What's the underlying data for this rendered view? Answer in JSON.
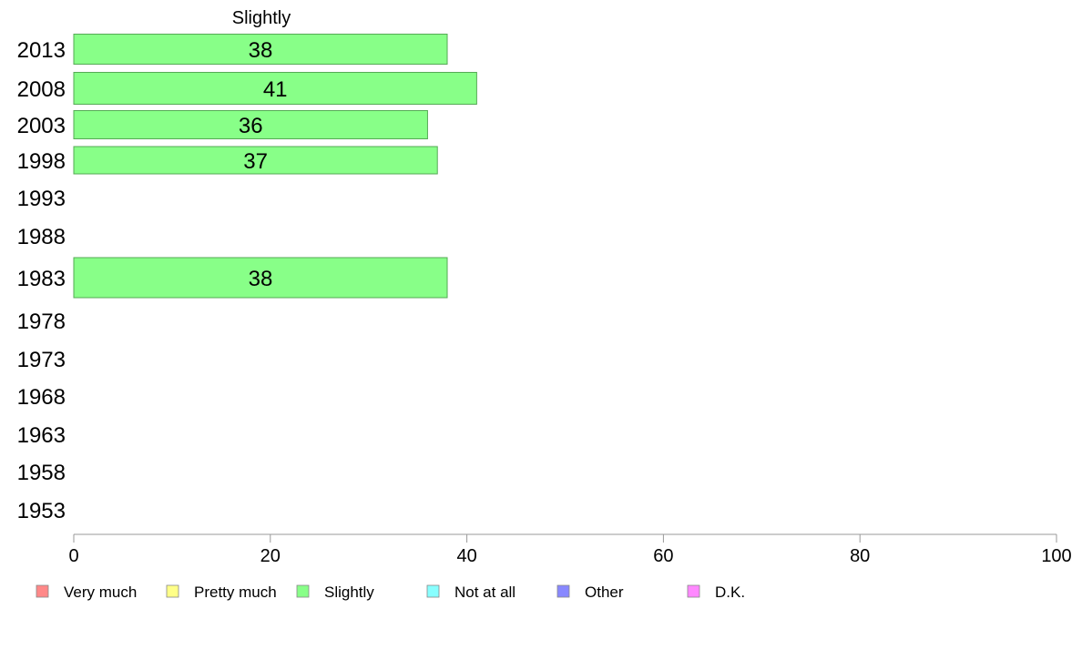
{
  "chart_data": {
    "type": "bar",
    "orientation": "horizontal",
    "title": "Slightly",
    "categories": [
      "2013",
      "2008",
      "2003",
      "1998",
      "1993",
      "1988",
      "1983",
      "1978",
      "1973",
      "1968",
      "1963",
      "1958",
      "1953"
    ],
    "values": [
      38,
      41,
      36,
      37,
      null,
      null,
      38,
      null,
      null,
      null,
      null,
      null,
      null
    ],
    "xlim": [
      0,
      100
    ],
    "xticks": [
      0,
      20,
      40,
      60,
      80,
      100
    ],
    "bar_color": "#88ff88",
    "bar_stroke": "#55aa55",
    "legend_position": "bottom",
    "legend": [
      {
        "label": "Very much",
        "color": "#ff8888"
      },
      {
        "label": "Pretty much",
        "color": "#ffff88"
      },
      {
        "label": "Slightly",
        "color": "#88ff88"
      },
      {
        "label": "Not at all",
        "color": "#88ffff"
      },
      {
        "label": "Other",
        "color": "#8888ff"
      },
      {
        "label": "D.K.",
        "color": "#ff88ff"
      }
    ]
  }
}
